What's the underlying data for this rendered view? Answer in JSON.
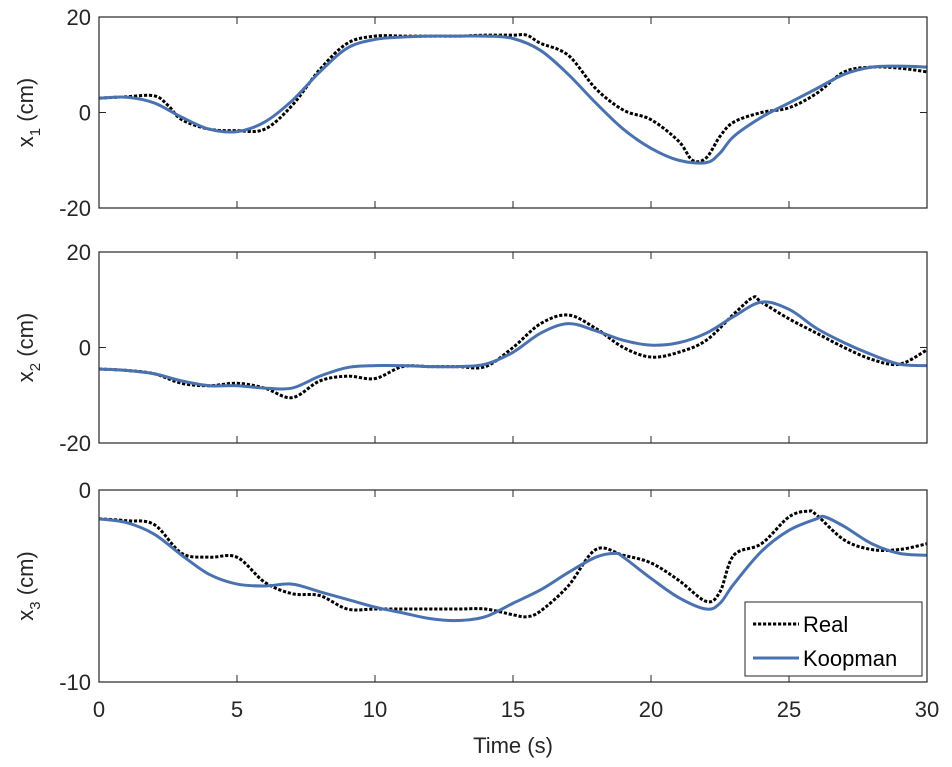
{
  "chart_data": {
    "type": "line",
    "xlabel": "Time (s)",
    "xlim": [
      0,
      30
    ],
    "xticks": [
      0,
      5,
      10,
      15,
      20,
      25,
      30
    ],
    "colors": {
      "Real": "#000000",
      "Koopman": "#4a72b0"
    },
    "legend": {
      "placement": "bottom-right",
      "entries": [
        "Real",
        "Koopman"
      ]
    },
    "panels": [
      {
        "ylabel_main": "x",
        "ylabel_sub": "1",
        "ylabel_unit": " (cm)",
        "ylim": [
          -20,
          20
        ],
        "yticks": [
          -20,
          0,
          20
        ],
        "series": [
          {
            "name": "Real",
            "x": [
              0,
              1,
              2,
              2.5,
              3,
              4,
              5,
              6,
              7,
              8,
              9,
              10,
              11,
              12,
              13,
              14,
              15,
              15.5,
              16,
              17,
              18,
              19,
              20,
              21,
              21.5,
              22,
              22.5,
              23,
              24,
              25,
              26,
              27,
              28,
              29,
              30
            ],
            "y": [
              3,
              3.3,
              3.5,
              1.5,
              -1.5,
              -3.5,
              -3.8,
              -3.5,
              1.5,
              9,
              14.5,
              16,
              16,
              16,
              16,
              16.2,
              16.2,
              16.2,
              14.5,
              12,
              5,
              0.5,
              -1.5,
              -6,
              -10,
              -9.5,
              -5,
              -2,
              0,
              1,
              4,
              8.5,
              9.5,
              9.3,
              8.5
            ]
          },
          {
            "name": "Koopman",
            "x": [
              0,
              1,
              2,
              3,
              4,
              5,
              6,
              7,
              8,
              9,
              10,
              11,
              12,
              13,
              14,
              15,
              16,
              17,
              18,
              19,
              20,
              21,
              22,
              22.5,
              23,
              24,
              25,
              26,
              27,
              28,
              29,
              30
            ],
            "y": [
              3,
              3.2,
              2,
              -1,
              -3.5,
              -4,
              -2,
              2.5,
              8.5,
              13.5,
              15.3,
              15.8,
              16,
              16,
              16,
              15.5,
              13,
              8,
              2,
              -3.5,
              -7.5,
              -10,
              -10.5,
              -8.5,
              -5,
              -1,
              2,
              5,
              8,
              9.5,
              9.7,
              9.5
            ]
          }
        ]
      },
      {
        "ylabel_main": "x",
        "ylabel_sub": "2",
        "ylabel_unit": " (cm)",
        "ylim": [
          -20,
          20
        ],
        "yticks": [
          -20,
          0,
          20
        ],
        "series": [
          {
            "name": "Real",
            "x": [
              0,
              1,
              2,
              3,
              4,
              5,
              6,
              7,
              8,
              9,
              10,
              11,
              12,
              13,
              14,
              15,
              16,
              17,
              18,
              19,
              20,
              21,
              22,
              23,
              23.7,
              24,
              25,
              26,
              27,
              28,
              29,
              30
            ],
            "y": [
              -4.5,
              -4.8,
              -5.5,
              -7.5,
              -8,
              -7.5,
              -8.5,
              -10.5,
              -7,
              -6,
              -6.5,
              -4,
              -4,
              -4,
              -4,
              0,
              5,
              6.8,
              4,
              0,
              -2,
              -1,
              1.5,
              7,
              10.5,
              9.5,
              6,
              3,
              0,
              -2.5,
              -3.5,
              -0.5
            ]
          },
          {
            "name": "Koopman",
            "x": [
              0,
              1,
              2,
              3,
              4,
              5,
              6,
              7,
              8,
              9,
              10,
              11,
              12,
              13,
              14,
              15,
              16,
              17,
              18,
              19,
              20,
              21,
              22,
              23,
              24,
              25,
              26,
              27,
              28,
              29,
              30
            ],
            "y": [
              -4.5,
              -4.8,
              -5.5,
              -7,
              -8,
              -8,
              -8.5,
              -8.5,
              -6,
              -4.2,
              -3.8,
              -3.8,
              -4,
              -4,
              -3.5,
              -1,
              3,
              5,
              3.5,
              1.5,
              0.5,
              1,
              3,
              6.5,
              9.5,
              8,
              4,
              1,
              -1.5,
              -3.5,
              -3.8
            ]
          }
        ]
      },
      {
        "ylabel_main": "x",
        "ylabel_sub": "3",
        "ylabel_unit": " (cm)",
        "ylim": [
          -10,
          0
        ],
        "yticks": [
          -10,
          0
        ],
        "series": [
          {
            "name": "Real",
            "x": [
              0,
              1,
              2,
              3,
              4,
              5,
              6,
              7,
              8,
              9,
              10,
              11,
              12,
              13,
              14,
              15,
              15.5,
              16,
              17,
              18,
              19,
              20,
              21,
              22,
              22.5,
              23,
              24,
              25,
              25.7,
              26,
              27,
              28,
              29,
              30
            ],
            "y": [
              -1.5,
              -1.6,
              -1.8,
              -3.3,
              -3.5,
              -3.5,
              -4.8,
              -5.4,
              -5.5,
              -6.2,
              -6.2,
              -6.2,
              -6.2,
              -6.2,
              -6.2,
              -6.5,
              -6.6,
              -6.3,
              -5,
              -3.1,
              -3.4,
              -3.8,
              -4.7,
              -5.8,
              -5.3,
              -3.4,
              -2.8,
              -1.4,
              -1.1,
              -1.3,
              -2.6,
              -3.1,
              -3.1,
              -2.8
            ]
          },
          {
            "name": "Koopman",
            "x": [
              0,
              1,
              2,
              3,
              4,
              5,
              6,
              7,
              8,
              9,
              10,
              11,
              12,
              13,
              14,
              15,
              16,
              17,
              18,
              18.7,
              19,
              20,
              21,
              22,
              22.5,
              23,
              24,
              25,
              26,
              26.3,
              27,
              28,
              29,
              30
            ],
            "y": [
              -1.5,
              -1.7,
              -2.3,
              -3.4,
              -4.4,
              -4.9,
              -5,
              -4.9,
              -5.3,
              -5.7,
              -6.1,
              -6.4,
              -6.7,
              -6.8,
              -6.6,
              -5.9,
              -5.2,
              -4.3,
              -3.5,
              -3.3,
              -3.5,
              -4.6,
              -5.6,
              -6.2,
              -5.9,
              -4.9,
              -3.2,
              -2.1,
              -1.5,
              -1.4,
              -1.9,
              -2.8,
              -3.3,
              -3.4
            ]
          }
        ]
      }
    ]
  }
}
